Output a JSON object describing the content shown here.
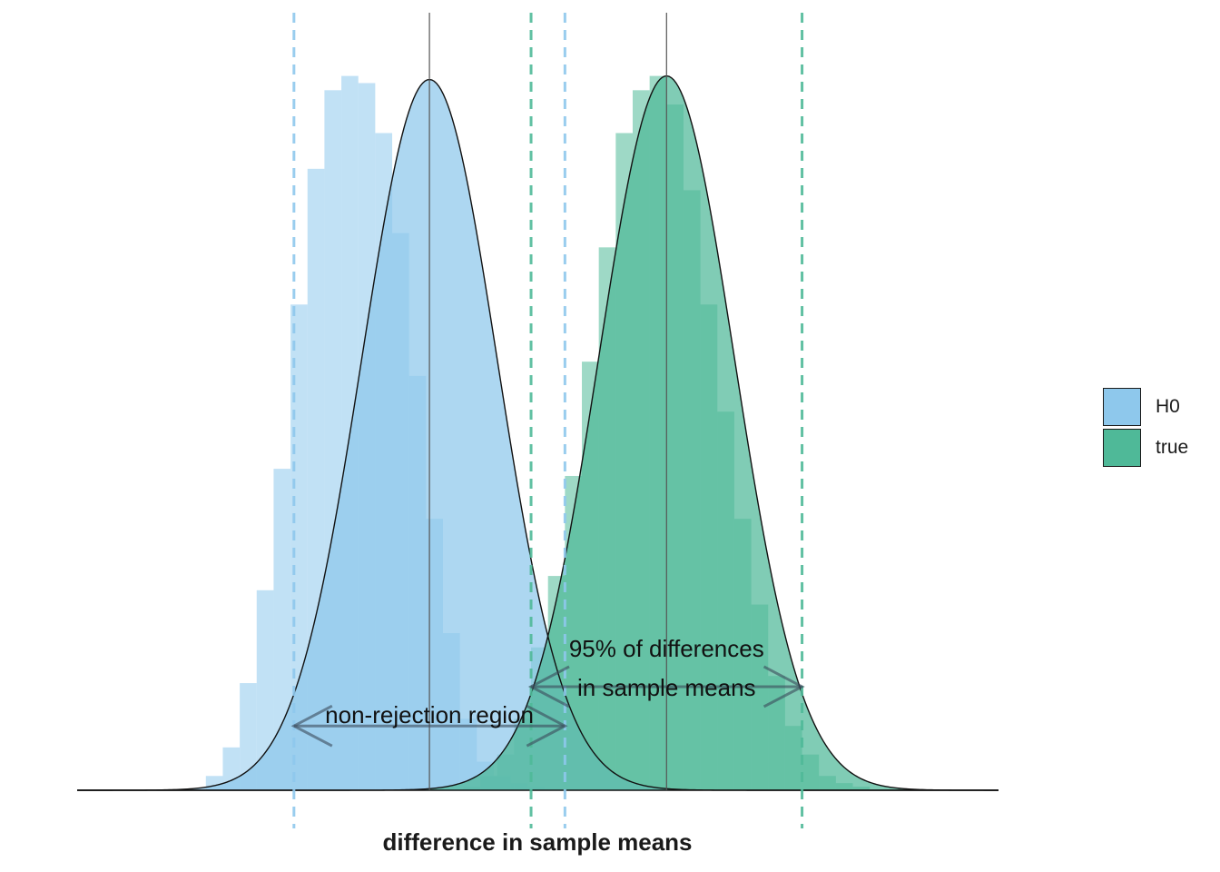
{
  "chart_data": {
    "type": "histogram-density",
    "title": "",
    "xlabel": "difference in sample means",
    "ylabel": "",
    "xlim": [
      -2.6,
      4.2
    ],
    "ylim": [
      0,
      1.03
    ],
    "grid": false,
    "legend_position": "right",
    "series": [
      {
        "name": "H0",
        "color": "#8ec8ec",
        "mean": 0,
        "sd": 0.5,
        "critical_lines": [
          -1,
          1
        ],
        "hist_bins": [
          -1.65,
          -1.525,
          -1.4,
          -1.275,
          -1.15,
          -1.025,
          -0.9,
          -0.775,
          -0.65,
          -0.525,
          -0.4,
          -0.275,
          -0.15,
          -0.025,
          0.1,
          0.225,
          0.35,
          0.475,
          0.6,
          0.725,
          0.85,
          0.975,
          1.1
        ],
        "hist_counts": [
          0.02,
          0.06,
          0.15,
          0.28,
          0.45,
          0.68,
          0.87,
          0.98,
          1.0,
          0.99,
          0.92,
          0.78,
          0.58,
          0.38,
          0.22,
          0.1,
          0.04,
          0.02,
          0.01,
          0.005,
          0.002,
          0.001
        ]
      },
      {
        "name": "true",
        "color": "#4fb998",
        "mean": 1.75,
        "sd": 0.5,
        "critical_lines": [
          0.75,
          2.75
        ],
        "hist_bins": [
          0.25,
          0.375,
          0.5,
          0.625,
          0.75,
          0.875,
          1.0,
          1.125,
          1.25,
          1.375,
          1.5,
          1.625,
          1.75,
          1.875,
          2.0,
          2.125,
          2.25,
          2.375,
          2.5,
          2.625,
          2.75,
          2.875,
          3.0,
          3.125,
          3.25
        ],
        "hist_counts": [
          0.005,
          0.02,
          0.05,
          0.1,
          0.2,
          0.3,
          0.44,
          0.6,
          0.76,
          0.92,
          0.98,
          1.0,
          0.96,
          0.84,
          0.68,
          0.53,
          0.38,
          0.26,
          0.16,
          0.09,
          0.05,
          0.02,
          0.01,
          0.005
        ]
      }
    ],
    "annotations": [
      {
        "text": "non-rejection region",
        "from": -1,
        "to": 1,
        "y": 0.09,
        "series": "H0"
      },
      {
        "text": "95% of differences",
        "text2": "in sample means",
        "from": 0.75,
        "to": 2.75,
        "y": 0.145,
        "series": "true"
      }
    ]
  },
  "legend": {
    "items": [
      {
        "label": "H0",
        "color": "#8ec8ec"
      },
      {
        "label": "true",
        "color": "#4fb998"
      }
    ]
  }
}
